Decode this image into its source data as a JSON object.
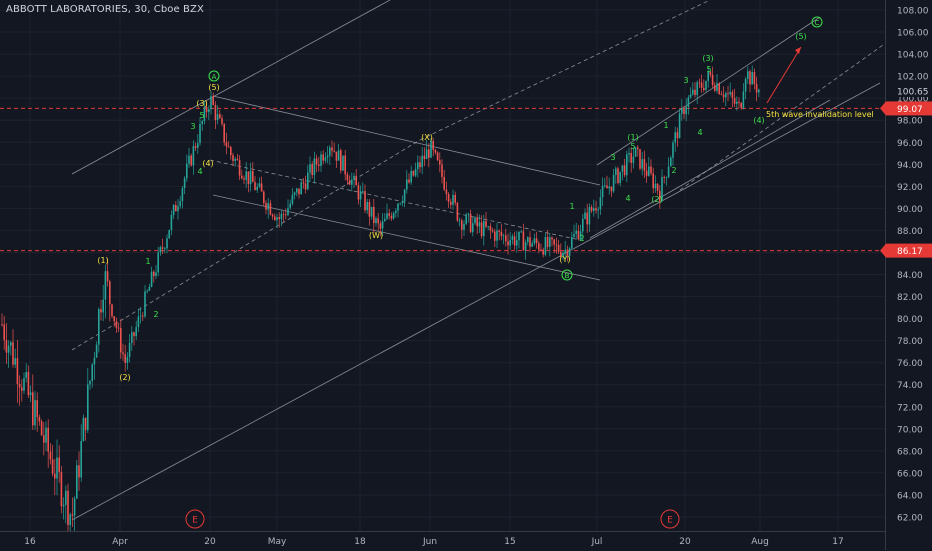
{
  "header": {
    "symbol_title": "ABBOTT LABORATORIES, 30, Cboe BZX"
  },
  "colors": {
    "background": "#131722",
    "candle_up": "#26a69a",
    "candle_down": "#ef5350",
    "channel_line": "#b2b5be",
    "wave_green": "#3ce24a",
    "wave_yellow": "#f5e23f",
    "level_red": "#e53935",
    "arrow_red": "#e53935",
    "axis_text": "#b2b5be"
  },
  "chart_data": {
    "type": "candlestick",
    "ylim": [
      61,
      109
    ],
    "price_axis_ticks": [
      "108.00",
      "106.00",
      "104.00",
      "102.00",
      "100.00",
      "98.00",
      "96.00",
      "94.00",
      "92.00",
      "90.00",
      "88.00",
      "86.00",
      "84.00",
      "82.00",
      "80.00",
      "78.00",
      "76.00",
      "74.00",
      "72.00",
      "70.00",
      "68.00",
      "66.00",
      "64.00",
      "62.00"
    ],
    "time_axis_ticks": [
      "16",
      "Apr",
      "20",
      "May",
      "18",
      "Jun",
      "15",
      "Jul",
      "20",
      "Aug",
      "17"
    ],
    "current_price_label": "100.65",
    "horizontal_levels": [
      {
        "value": 99.07,
        "label": "99.07"
      },
      {
        "value": 86.17,
        "label": "86.17"
      }
    ],
    "annotation_text": "5th wave invalidation level",
    "wave_labels_green": [
      "A",
      "B",
      "C"
    ],
    "wave_labels_minor_green": [
      "1",
      "2",
      "3",
      "4",
      "5",
      "(1)",
      "(2)",
      "(3)",
      "(4)",
      "(5)"
    ],
    "wave_labels_yellow": [
      "(1)",
      "(2)",
      "(3)",
      "(4)",
      "(5)",
      "(W)",
      "(X)",
      "(Y)"
    ],
    "event_markers": [
      "E",
      "E"
    ],
    "close_series_approx": [
      {
        "t": "mid-Mar",
        "close": 80
      },
      {
        "t": "Mar 23",
        "close": 62
      },
      {
        "t": "Mar 26",
        "close": 84
      },
      {
        "t": "Mar 31",
        "close": 76
      },
      {
        "t": "Apr 9",
        "close": 83
      },
      {
        "t": "Apr 15",
        "close": 88
      },
      {
        "t": "Apr 20",
        "close": 100
      },
      {
        "t": "Apr 21",
        "close": 95
      },
      {
        "t": "May 1",
        "close": 89
      },
      {
        "t": "May 7",
        "close": 96
      },
      {
        "t": "May 18",
        "close": 88
      },
      {
        "t": "Jun 1",
        "close": 95.5
      },
      {
        "t": "Jun 8",
        "close": 89
      },
      {
        "t": "Jun 15",
        "close": 87.5
      },
      {
        "t": "Jun 25",
        "close": 86.2
      },
      {
        "t": "Jul 1",
        "close": 91
      },
      {
        "t": "Jul 6",
        "close": 95
      },
      {
        "t": "Jul 14",
        "close": 91.5
      },
      {
        "t": "Jul 20",
        "close": 99.5
      },
      {
        "t": "Jul 24",
        "close": 102
      },
      {
        "t": "Jul 28",
        "close": 99
      },
      {
        "t": "Jul 30",
        "close": 102.5
      },
      {
        "t": "Aug 1",
        "close": 100.65
      }
    ]
  }
}
